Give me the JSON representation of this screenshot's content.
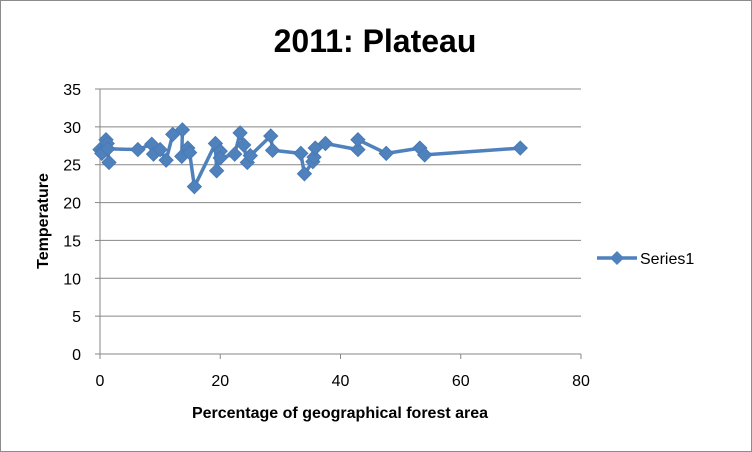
{
  "chart_data": {
    "type": "scatter",
    "title": "2011: Plateau",
    "xlabel": "Percentage of geographical forest area",
    "ylabel": "Temperature",
    "xlim": [
      0,
      80
    ],
    "ylim": [
      0,
      35
    ],
    "x_ticks": [
      "0",
      "20",
      "40",
      "60",
      "80"
    ],
    "y_ticks": [
      "0",
      "5",
      "10",
      "15",
      "20",
      "25",
      "30",
      "35"
    ],
    "grid": "horizontal",
    "legend_position": "right",
    "line_style": "lines-with-markers",
    "marker": "diamond",
    "color": "#4f81bd",
    "series": [
      {
        "name": "Series1",
        "points": [
          [
            0,
            27
          ],
          [
            0.5,
            26.8
          ],
          [
            1,
            28.3
          ],
          [
            1.5,
            25.3
          ],
          [
            1.2,
            27.8
          ],
          [
            0.3,
            26.5
          ],
          [
            1.3,
            27.1
          ],
          [
            6.3,
            27.0
          ],
          [
            8.6,
            27.7
          ],
          [
            8.9,
            26.4
          ],
          [
            10.0,
            27.0
          ],
          [
            11.0,
            25.6
          ],
          [
            12.1,
            29.0
          ],
          [
            13.7,
            29.6
          ],
          [
            13.6,
            26.1
          ],
          [
            14.6,
            27.2
          ],
          [
            14.9,
            26.6
          ],
          [
            15.7,
            22.1
          ],
          [
            19.2,
            27.8
          ],
          [
            19.4,
            24.2
          ],
          [
            20.0,
            26.8
          ],
          [
            20.0,
            25.9
          ],
          [
            22.4,
            26.4
          ],
          [
            23.3,
            29.2
          ],
          [
            23.9,
            27.6
          ],
          [
            24.5,
            25.3
          ],
          [
            25.0,
            26.2
          ],
          [
            28.4,
            28.8
          ],
          [
            28.7,
            26.9
          ],
          [
            33.4,
            26.5
          ],
          [
            34.0,
            23.8
          ],
          [
            35.4,
            25.4
          ],
          [
            35.6,
            26.0
          ],
          [
            35.8,
            27.2
          ],
          [
            37.5,
            27.8
          ],
          [
            42.9,
            27.0
          ],
          [
            42.9,
            28.3
          ],
          [
            47.6,
            26.5
          ],
          [
            53.2,
            27.2
          ],
          [
            54.0,
            26.3
          ],
          [
            69.9,
            27.2
          ]
        ]
      }
    ]
  }
}
